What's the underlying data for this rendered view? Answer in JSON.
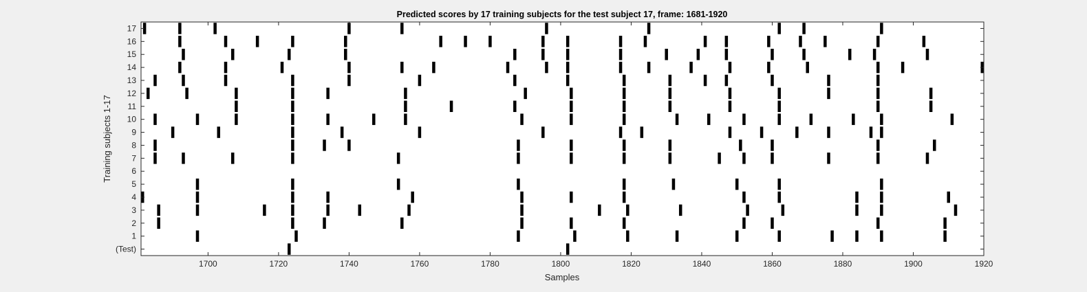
{
  "chart_data": {
    "type": "raster",
    "title": "Predicted scores by 17 training subjects for the test subject 17, frame: 1681-1920",
    "xlabel": "Samples",
    "ylabel": "Training subjects 1-17",
    "xlim": [
      1681,
      1920
    ],
    "x_ticks": [
      1700,
      1720,
      1740,
      1760,
      1780,
      1800,
      1820,
      1840,
      1860,
      1880,
      1900,
      1920
    ],
    "row_labels": [
      "(Test)",
      "1",
      "2",
      "3",
      "4",
      "5",
      "6",
      "7",
      "8",
      "9",
      "10",
      "11",
      "12",
      "13",
      "14",
      "15",
      "16",
      "17"
    ],
    "grid": false,
    "colors": {
      "mark": "#000000",
      "plot_bg": "#ffffff",
      "figure_bg": "#f0f0f0",
      "axis": "#262626"
    },
    "rows": [
      {
        "label": "(Test)",
        "x": [
          1723,
          1802
        ]
      },
      {
        "label": "1",
        "x": [
          1697,
          1725,
          1788,
          1804,
          1819,
          1833,
          1850,
          1862,
          1877,
          1884,
          1891,
          1909
        ]
      },
      {
        "label": "2",
        "x": [
          1686,
          1724,
          1733,
          1755,
          1789,
          1803,
          1818,
          1852,
          1860,
          1890,
          1909
        ]
      },
      {
        "label": "3",
        "x": [
          1686,
          1697,
          1716,
          1724,
          1734,
          1743,
          1757,
          1789,
          1811,
          1819,
          1834,
          1853,
          1863,
          1884,
          1891,
          1912
        ]
      },
      {
        "label": "4",
        "x": [
          1681,
          1697,
          1724,
          1734,
          1758,
          1789,
          1803,
          1818,
          1852,
          1862,
          1884,
          1891,
          1910
        ]
      },
      {
        "label": "5",
        "x": [
          1697,
          1724,
          1754,
          1788,
          1818,
          1832,
          1850,
          1862,
          1891
        ]
      },
      {
        "label": "6",
        "x": []
      },
      {
        "label": "7",
        "x": [
          1685,
          1693,
          1707,
          1724,
          1754,
          1788,
          1803,
          1818,
          1831,
          1845,
          1852,
          1860,
          1876,
          1890,
          1904
        ]
      },
      {
        "label": "8",
        "x": [
          1685,
          1724,
          1733,
          1740,
          1788,
          1803,
          1818,
          1831,
          1851,
          1860,
          1890,
          1906
        ]
      },
      {
        "label": "9",
        "x": [
          1690,
          1703,
          1724,
          1738,
          1760,
          1795,
          1817,
          1823,
          1848,
          1857,
          1867,
          1876,
          1888,
          1891
        ]
      },
      {
        "label": "10",
        "x": [
          1685,
          1697,
          1708,
          1724,
          1734,
          1747,
          1756,
          1789,
          1803,
          1818,
          1833,
          1842,
          1852,
          1862,
          1871,
          1883,
          1891,
          1911
        ]
      },
      {
        "label": "11",
        "x": [
          1708,
          1724,
          1756,
          1769,
          1787,
          1803,
          1818,
          1831,
          1848,
          1862,
          1890,
          1905
        ]
      },
      {
        "label": "12",
        "x": [
          1683,
          1694,
          1708,
          1724,
          1734,
          1756,
          1790,
          1803,
          1818,
          1831,
          1848,
          1862,
          1876,
          1890,
          1905
        ]
      },
      {
        "label": "13",
        "x": [
          1685,
          1693,
          1705,
          1724,
          1740,
          1760,
          1787,
          1802,
          1818,
          1831,
          1841,
          1847,
          1860,
          1876,
          1890
        ]
      },
      {
        "label": "14",
        "x": [
          1692,
          1705,
          1721,
          1740,
          1755,
          1764,
          1785,
          1796,
          1802,
          1817,
          1825,
          1837,
          1848,
          1859,
          1870,
          1890,
          1897,
          1920
        ]
      },
      {
        "label": "15",
        "x": [
          1693,
          1707,
          1723,
          1739,
          1787,
          1795,
          1802,
          1817,
          1830,
          1839,
          1847,
          1860,
          1869,
          1882,
          1889,
          1904
        ]
      },
      {
        "label": "16",
        "x": [
          1692,
          1705,
          1714,
          1724,
          1739,
          1766,
          1773,
          1780,
          1795,
          1802,
          1817,
          1824,
          1841,
          1847,
          1859,
          1868,
          1875,
          1890,
          1903
        ]
      },
      {
        "label": "17",
        "x": [
          1682,
          1692,
          1702,
          1740,
          1755,
          1796,
          1825,
          1862,
          1869,
          1891
        ]
      }
    ]
  }
}
